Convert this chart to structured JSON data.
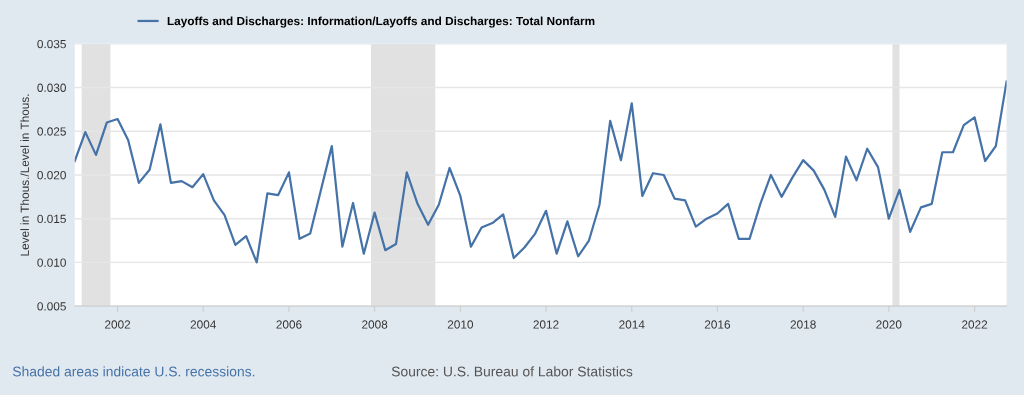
{
  "chart_data": {
    "type": "line",
    "ylabel": "Level in Thous./Level in Thous.",
    "x": [
      "2001-01",
      "2001-04",
      "2001-07",
      "2001-10",
      "2002-01",
      "2002-04",
      "2002-07",
      "2002-10",
      "2003-01",
      "2003-04",
      "2003-07",
      "2003-10",
      "2004-01",
      "2004-04",
      "2004-07",
      "2004-10",
      "2005-01",
      "2005-04",
      "2005-07",
      "2005-10",
      "2006-01",
      "2006-04",
      "2006-07",
      "2006-10",
      "2007-01",
      "2007-04",
      "2007-07",
      "2007-10",
      "2008-01",
      "2008-04",
      "2008-07",
      "2008-10",
      "2009-01",
      "2009-04",
      "2009-07",
      "2009-10",
      "2010-01",
      "2010-04",
      "2010-07",
      "2010-10",
      "2011-01",
      "2011-04",
      "2011-07",
      "2011-10",
      "2012-01",
      "2012-04",
      "2012-07",
      "2012-10",
      "2013-01",
      "2013-04",
      "2013-07",
      "2013-10",
      "2014-01",
      "2014-04",
      "2014-07",
      "2014-10",
      "2015-01",
      "2015-04",
      "2015-07",
      "2015-10",
      "2016-01",
      "2016-04",
      "2016-07",
      "2016-10",
      "2017-01",
      "2017-04",
      "2017-07",
      "2017-10",
      "2018-01",
      "2018-04",
      "2018-07",
      "2018-10",
      "2019-01",
      "2019-04",
      "2019-07",
      "2019-10",
      "2020-01",
      "2020-04",
      "2020-07",
      "2020-10",
      "2021-01",
      "2021-04",
      "2021-07",
      "2021-10",
      "2022-01",
      "2022-04",
      "2022-07",
      "2022-10"
    ],
    "series": [
      {
        "name": "Layoffs and Discharges: Information/Layoffs and Discharges: Total Nonfarm",
        "color": "#4572a7",
        "values": [
          0.0216,
          0.0249,
          0.0223,
          0.026,
          0.0264,
          0.024,
          0.0191,
          0.0206,
          0.0258,
          0.0191,
          0.0193,
          0.0186,
          0.0201,
          0.0171,
          0.0154,
          0.012,
          0.013,
          0.01,
          0.0179,
          0.0177,
          0.0203,
          0.0127,
          0.0133,
          0.0183,
          0.0233,
          0.0118,
          0.0168,
          0.011,
          0.0157,
          0.0114,
          0.0121,
          0.0203,
          0.0167,
          0.0143,
          0.0166,
          0.0208,
          0.0176,
          0.0118,
          0.014,
          0.0145,
          0.0155,
          0.0105,
          0.0117,
          0.0133,
          0.0159,
          0.011,
          0.0147,
          0.0107,
          0.0125,
          0.0166,
          0.0262,
          0.0217,
          0.0282,
          0.0176,
          0.0202,
          0.02,
          0.0173,
          0.0171,
          0.0141,
          0.015,
          0.0156,
          0.0167,
          0.0127,
          0.0127,
          0.0167,
          0.02,
          0.0175,
          0.0197,
          0.0217,
          0.0205,
          0.0183,
          0.0152,
          0.0221,
          0.0194,
          0.023,
          0.0209,
          0.015,
          0.0183,
          0.0135,
          0.0163,
          0.0167,
          0.0226,
          0.0226,
          0.0257,
          0.0266,
          0.0216,
          0.0233,
          0.0307
        ]
      }
    ],
    "xlim": [
      "2001-01",
      "2022-10"
    ],
    "xticks": [
      {
        "value": "2002",
        "label": "2002"
      },
      {
        "value": "2004",
        "label": "2004"
      },
      {
        "value": "2006",
        "label": "2006"
      },
      {
        "value": "2008",
        "label": "2008"
      },
      {
        "value": "2010",
        "label": "2010"
      },
      {
        "value": "2012",
        "label": "2012"
      },
      {
        "value": "2014",
        "label": "2014"
      },
      {
        "value": "2016",
        "label": "2016"
      },
      {
        "value": "2018",
        "label": "2018"
      },
      {
        "value": "2020",
        "label": "2020"
      },
      {
        "value": "2022",
        "label": "2022"
      }
    ],
    "ylim": [
      0.005,
      0.035
    ],
    "yticks": [
      {
        "value": 0.005,
        "label": "0.005"
      },
      {
        "value": 0.01,
        "label": "0.010"
      },
      {
        "value": 0.015,
        "label": "0.015"
      },
      {
        "value": 0.02,
        "label": "0.020"
      },
      {
        "value": 0.025,
        "label": "0.025"
      },
      {
        "value": 0.03,
        "label": "0.030"
      },
      {
        "value": 0.035,
        "label": "0.035"
      }
    ],
    "bands": [
      {
        "axis": "x",
        "from": "2001-03",
        "to": "2001-11",
        "color": "#e1e1e1"
      },
      {
        "axis": "x",
        "from": "2007-12",
        "to": "2009-06",
        "color": "#e1e1e1"
      },
      {
        "axis": "x",
        "from": "2020-02",
        "to": "2020-04",
        "color": "#e1e1e1"
      }
    ],
    "grid": "y",
    "legend": "top left",
    "line_style": "solid",
    "marker": "none",
    "annotations": [
      "Shaded areas indicate U.S. recessions.",
      "Source: U.S. Bureau of Labor Statistics"
    ]
  }
}
